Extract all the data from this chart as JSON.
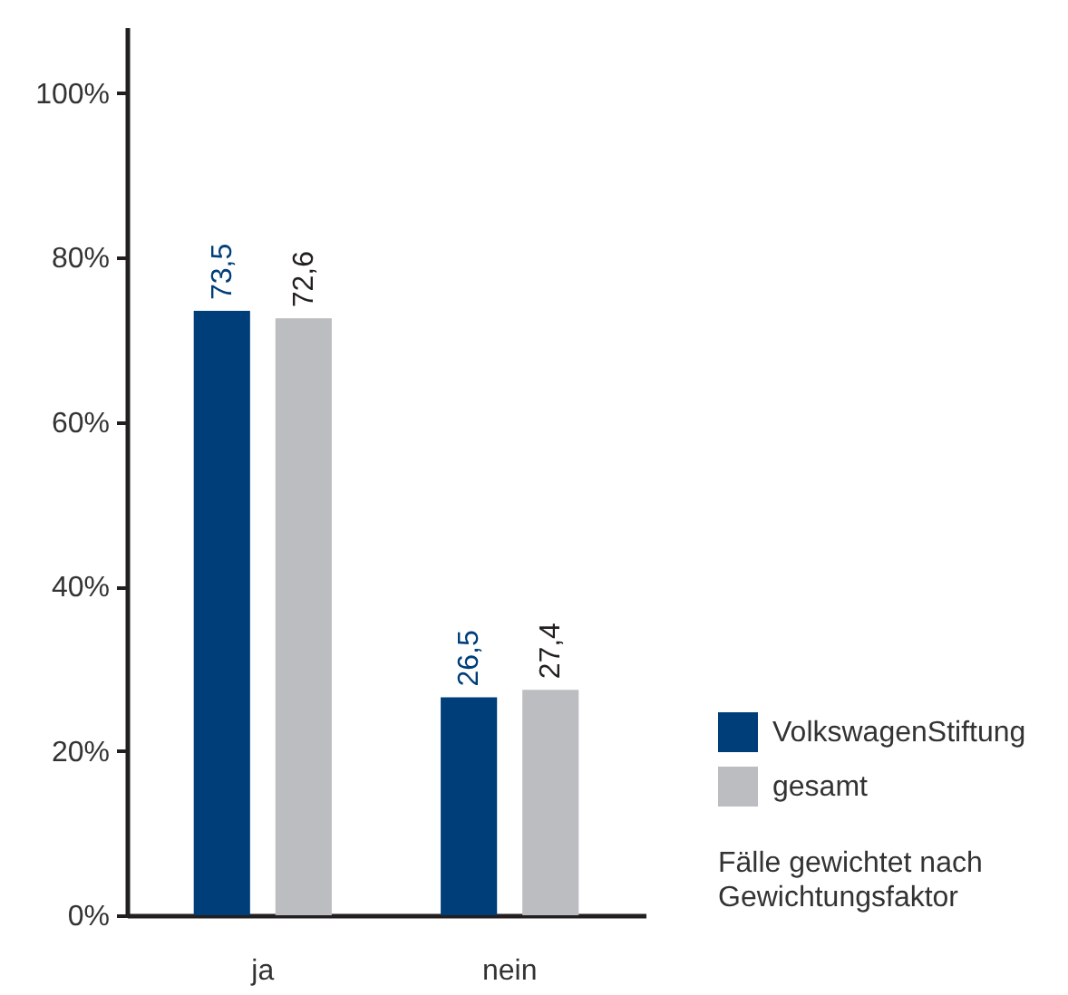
{
  "chart_data": {
    "type": "bar",
    "categories": [
      "ja",
      "nein"
    ],
    "series": [
      {
        "name": "VolkswagenStiftung",
        "color": "#003e7a",
        "values": [
          73.5,
          26.5
        ],
        "value_labels": [
          "73,5",
          "26,5"
        ]
      },
      {
        "name": "gesamt",
        "color": "#bcbdc1",
        "values": [
          72.6,
          27.4
        ],
        "value_labels": [
          "72,6",
          "27,4"
        ]
      }
    ],
    "ylim": [
      0,
      108
    ],
    "yticks": [
      {
        "value": 0,
        "label": "0%"
      },
      {
        "value": 20,
        "label": "20%"
      },
      {
        "value": 40,
        "label": "40%"
      },
      {
        "value": 60,
        "label": "60%"
      },
      {
        "value": 80,
        "label": "80%"
      },
      {
        "value": 100,
        "label": "100%"
      }
    ],
    "legend": "bottom right",
    "annotations": [
      "Fälle gewichtet nach Gewichtungsfaktor"
    ]
  }
}
